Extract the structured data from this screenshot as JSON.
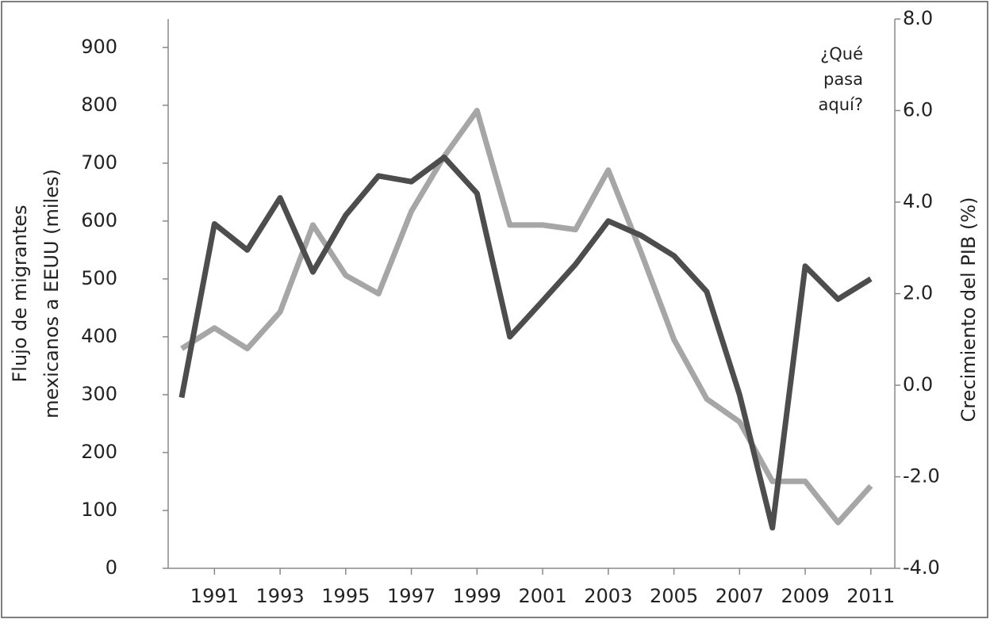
{
  "chart_data": {
    "type": "line",
    "x": [
      1990,
      1991,
      1992,
      1993,
      1994,
      1995,
      1996,
      1997,
      1998,
      1999,
      2000,
      2001,
      2002,
      2003,
      2004,
      2005,
      2006,
      2007,
      2008,
      2009,
      2010,
      2011
    ],
    "xlim": [
      1989.59,
      2011.73
    ],
    "xticks": [
      1991,
      1993,
      1995,
      1997,
      1999,
      2001,
      2003,
      2005,
      2007,
      2009,
      2011
    ],
    "ylabel": [
      "Flujo de migrantes",
      "mexicanos a EEUU (miles)"
    ],
    "y2label": "Crecimiento del PIB (%)",
    "annotation": [
      "¿Qué",
      "pasa",
      "aquí?"
    ],
    "ylim": [
      0,
      949
    ],
    "yticks": [
      0,
      100,
      200,
      300,
      400,
      500,
      600,
      700,
      800,
      900
    ],
    "y2lim": [
      -4,
      8
    ],
    "y2ticks": [
      {
        "value": -4,
        "label": "-4.0"
      },
      {
        "value": -2,
        "label": "-2.0"
      },
      {
        "value": 0,
        "label": "0.0"
      },
      {
        "value": 2,
        "label": "2.0"
      },
      {
        "value": 4,
        "label": "4.0"
      },
      {
        "value": 6,
        "label": "6.0"
      },
      {
        "value": 8,
        "label": "8.0"
      }
    ],
    "series": [
      {
        "color": "#a6a6a6",
        "axis": "y2",
        "values": [
          0.8,
          1.25,
          0.8,
          1.6,
          3.5,
          2.4,
          2.0,
          3.8,
          5.0,
          6.0,
          3.5,
          3.5,
          3.4,
          4.7,
          2.9,
          1.0,
          -0.3,
          -0.8,
          -2.1,
          -2.1,
          -3.0,
          -2.2
        ]
      },
      {
        "color": "#4d4d4d",
        "values": [
          295,
          595,
          550,
          640,
          512,
          610,
          678,
          668,
          710,
          648,
          400,
          462,
          525,
          600,
          575,
          540,
          478,
          300,
          70,
          522,
          465,
          500
        ]
      }
    ]
  }
}
